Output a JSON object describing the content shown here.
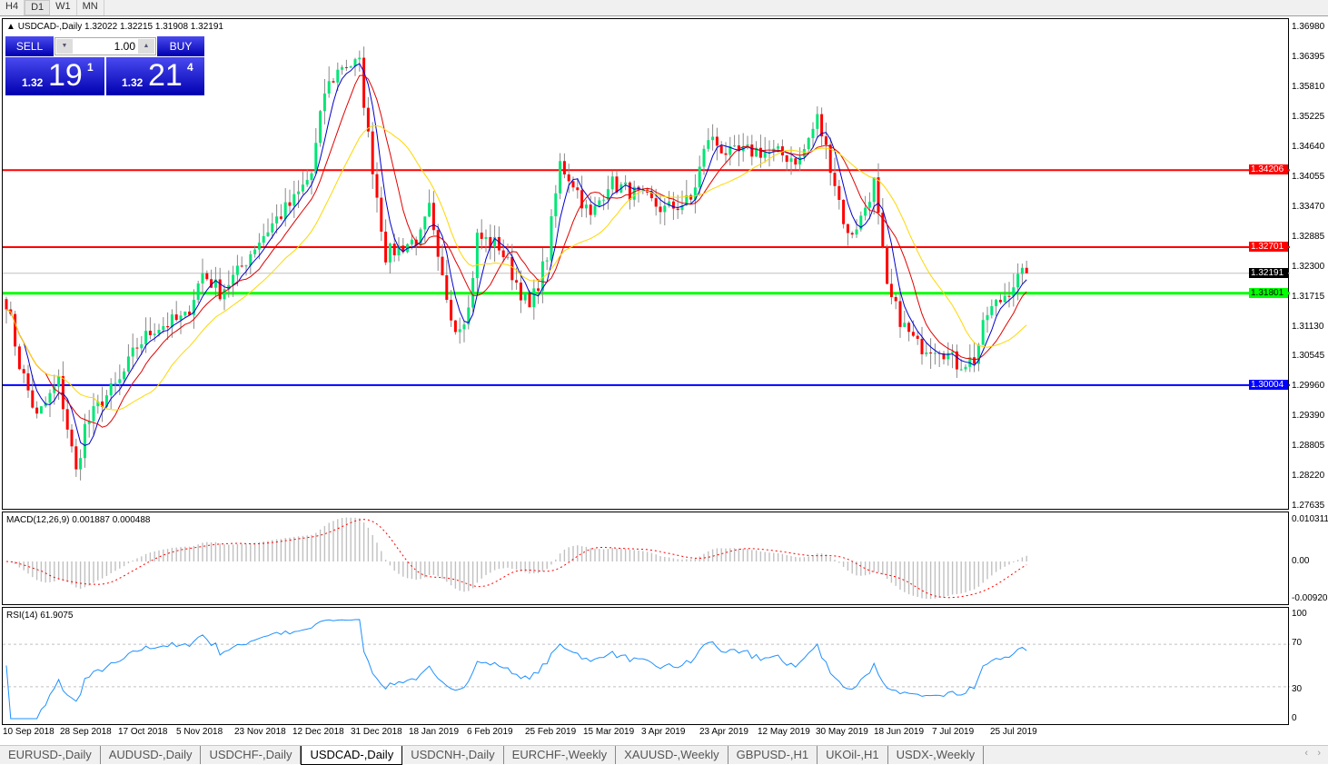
{
  "timeframes": [
    "H4",
    "D1",
    "W1",
    "MN"
  ],
  "active_timeframe": "D1",
  "chart": {
    "header": "USDCAD-,Daily  1.32022 1.32215 1.31908 1.32191",
    "symbol": "USDCAD-",
    "period": "Daily",
    "ohlc": {
      "open": "1.32022",
      "high": "1.32215",
      "low": "1.31908",
      "close": "1.32191"
    },
    "trade_panel": {
      "sell_label": "SELL",
      "buy_label": "BUY",
      "lot": "1.00",
      "sell": {
        "prefix": "1.32",
        "big": "19",
        "sup": "1"
      },
      "buy": {
        "prefix": "1.32",
        "big": "21",
        "sup": "4"
      }
    },
    "price_axis": [
      "1.36980",
      "1.36395",
      "1.35810",
      "1.35225",
      "1.34640",
      "1.34055",
      "1.33470",
      "1.32885",
      "1.32300",
      "1.31715",
      "1.31130",
      "1.30545",
      "1.29960",
      "1.29390",
      "1.28805",
      "1.28220",
      "1.27635"
    ],
    "levels": [
      {
        "price": "1.34206",
        "color": "#ff0000"
      },
      {
        "price": "1.32701",
        "color": "#ff0000"
      },
      {
        "price": "1.32191",
        "color": "#000000",
        "bid": true
      },
      {
        "price": "1.31801",
        "color": "#00ff00"
      },
      {
        "price": "1.30004",
        "color": "#0000ff"
      }
    ],
    "colors": {
      "bull": "#00e676",
      "bear": "#ff0000",
      "ma_fast": "#0000cc",
      "ma_mid": "#e00000",
      "ma_slow": "#ffd700"
    },
    "close_path": [
      [
        0,
        1.3166
      ],
      [
        3,
        1.3042
      ],
      [
        7,
        1.2936
      ],
      [
        12,
        1.3007
      ],
      [
        16,
        1.2829
      ],
      [
        18,
        1.2918
      ],
      [
        22,
        1.2971
      ],
      [
        26,
        1.3007
      ],
      [
        30,
        1.3077
      ],
      [
        34,
        1.3113
      ],
      [
        41,
        1.3131
      ],
      [
        45,
        1.3219
      ],
      [
        49,
        1.3184
      ],
      [
        53,
        1.3219
      ],
      [
        57,
        1.3273
      ],
      [
        62,
        1.3326
      ],
      [
        66,
        1.3361
      ],
      [
        70,
        1.3414
      ],
      [
        73,
        1.3574
      ],
      [
        77,
        1.3627
      ],
      [
        81,
        1.3627
      ],
      [
        83,
        1.3485
      ],
      [
        87,
        1.3255
      ],
      [
        91,
        1.3273
      ],
      [
        95,
        1.329
      ],
      [
        97,
        1.3343
      ],
      [
        99,
        1.3237
      ],
      [
        103,
        1.3113
      ],
      [
        106,
        1.3148
      ],
      [
        108,
        1.329
      ],
      [
        113,
        1.3273
      ],
      [
        116,
        1.3219
      ],
      [
        120,
        1.3148
      ],
      [
        124,
        1.3255
      ],
      [
        127,
        1.3432
      ],
      [
        130,
        1.3397
      ],
      [
        134,
        1.3326
      ],
      [
        138,
        1.3397
      ],
      [
        143,
        1.3379
      ],
      [
        147,
        1.3361
      ],
      [
        151,
        1.3343
      ],
      [
        157,
        1.3361
      ],
      [
        161,
        1.3485
      ],
      [
        166,
        1.345
      ],
      [
        172,
        1.3459
      ],
      [
        178,
        1.345
      ],
      [
        182,
        1.3441
      ],
      [
        186,
        1.3521
      ],
      [
        189,
        1.3432
      ],
      [
        193,
        1.329
      ],
      [
        196,
        1.3326
      ],
      [
        199,
        1.3397
      ],
      [
        202,
        1.3184
      ],
      [
        206,
        1.3113
      ],
      [
        209,
        1.3077
      ],
      [
        214,
        1.3077
      ],
      [
        218,
        1.3042
      ],
      [
        222,
        1.3051
      ],
      [
        225,
        1.314
      ],
      [
        228,
        1.3166
      ],
      [
        231,
        1.3201
      ],
      [
        234,
        1.32191
      ]
    ]
  },
  "macd": {
    "label": "MACD(12,26,9) 0.001887 0.000488",
    "axis": [
      "0.010311",
      "0.00",
      "-0.009203"
    ]
  },
  "rsi": {
    "label": "RSI(14) 61.9075",
    "axis": [
      "100",
      "70",
      "30",
      "0"
    ]
  },
  "dates": [
    "10 Sep 2018",
    "28 Sep 2018",
    "17 Oct 2018",
    "5 Nov 2018",
    "23 Nov 2018",
    "12 Dec 2018",
    "31 Dec 2018",
    "18 Jan 2019",
    "6 Feb 2019",
    "25 Feb 2019",
    "15 Mar 2019",
    "3 Apr 2019",
    "23 Apr 2019",
    "12 May 2019",
    "30 May 2019",
    "18 Jun 2019",
    "7 Jul 2019",
    "25 Jul 2019"
  ],
  "tabs": [
    "EURUSD-,Daily",
    "AUDUSD-,Daily",
    "USDCHF-,Daily",
    "USDCAD-,Daily",
    "USDCNH-,Daily",
    "EURCHF-,Weekly",
    "XAUUSD-,Weekly",
    "GBPUSD-,H1",
    "UKOil-,H1",
    "USDX-,Weekly"
  ],
  "active_tab": "USDCAD-,Daily",
  "tab_scroll": {
    "left": "‹",
    "right": "›"
  }
}
